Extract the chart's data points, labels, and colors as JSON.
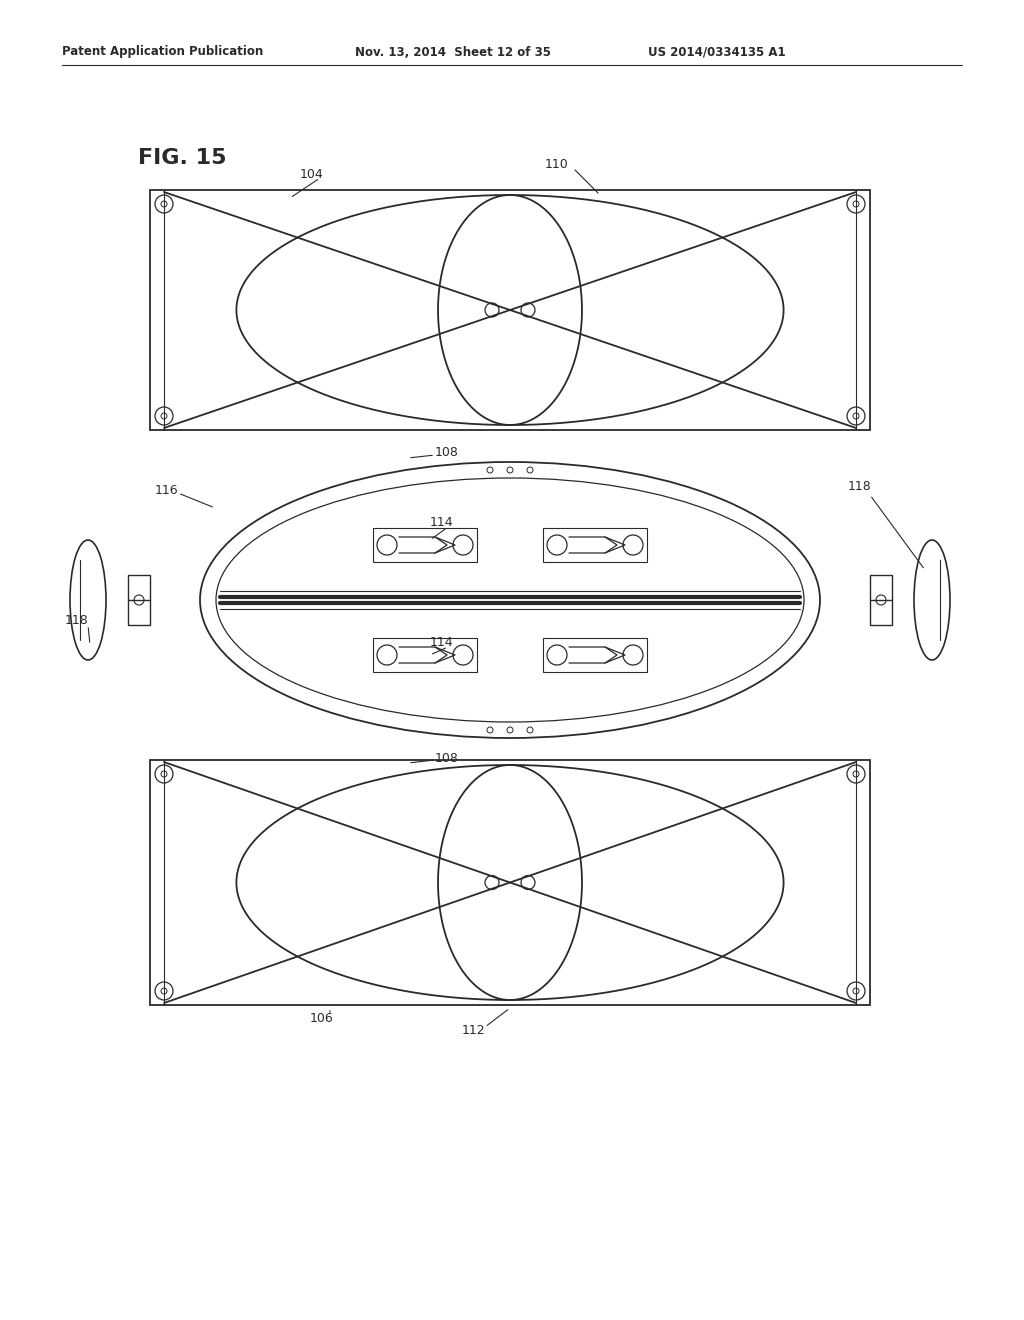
{
  "header_left": "Patent Application Publication",
  "header_mid": "Nov. 13, 2014  Sheet 12 of 35",
  "header_right": "US 2014/0334135 A1",
  "fig_label": "FIG. 15",
  "bg_color": "#ffffff",
  "line_color": "#2a2a2a"
}
